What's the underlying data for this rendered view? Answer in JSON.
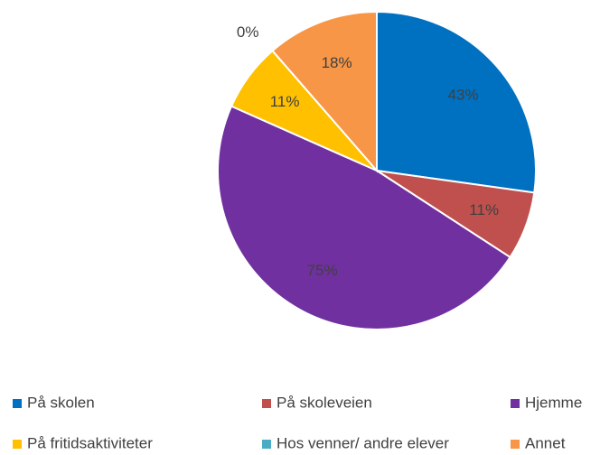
{
  "chart_data": {
    "type": "pie",
    "categories": [
      "På skolen",
      "På skoleveien",
      "Hjemme",
      "På fritidsaktiviteter",
      "Hos venner/ andre elever",
      "Annet"
    ],
    "values": [
      43,
      11,
      75,
      11,
      0,
      18
    ],
    "value_labels": [
      "43%",
      "11%",
      "75%",
      "11%",
      "0%",
      "18%"
    ],
    "colors": [
      "#0070c0",
      "#c0504d",
      "#7030a0",
      "#ffc000",
      "#4bacc6",
      "#f79646"
    ],
    "legend": "bottom"
  }
}
